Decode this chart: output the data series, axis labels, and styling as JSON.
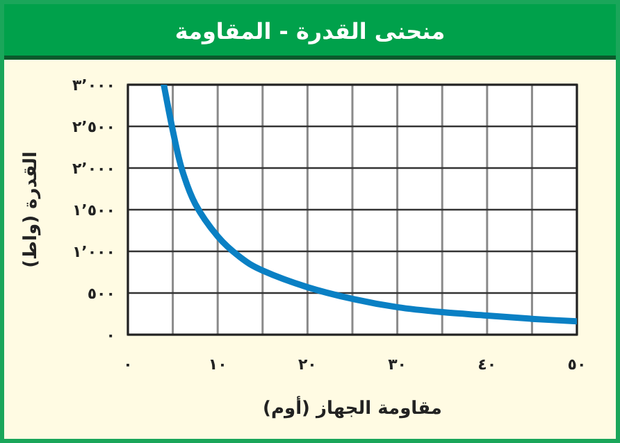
{
  "chart_data": {
    "type": "line",
    "title": "منحنى القدرة - المقاومة",
    "xlabel": "مقاومة الجهاز (أوم)",
    "ylabel": "القدرة (واط)",
    "x": [
      4,
      5,
      6,
      7.5,
      10,
      12.5,
      15,
      20,
      25,
      30,
      35,
      40,
      45,
      50
    ],
    "series": [
      {
        "color": "#0a80c4",
        "values": [
          3000,
          2450,
          1990,
          1570,
          1180,
          930,
          770,
          570,
          430,
          330,
          270,
          230,
          190,
          160
        ]
      }
    ],
    "xlim": [
      0,
      50
    ],
    "ylim": [
      0,
      3000
    ],
    "xticks": [
      {
        "value": 0,
        "label": "٠"
      },
      {
        "value": 5,
        "label": null
      },
      {
        "value": 10,
        "label": "١٠"
      },
      {
        "value": 15,
        "label": null
      },
      {
        "value": 20,
        "label": "٢٠"
      },
      {
        "value": 25,
        "label": null
      },
      {
        "value": 30,
        "label": "٣٠"
      },
      {
        "value": 35,
        "label": null
      },
      {
        "value": 40,
        "label": "٤٠"
      },
      {
        "value": 45,
        "label": null
      },
      {
        "value": 50,
        "label": "٥٠"
      }
    ],
    "yticks": [
      {
        "value": 0,
        "label": "٠"
      },
      {
        "value": 500,
        "label": "٥٠٠"
      },
      {
        "value": 1000,
        "label": "١٬٠٠٠"
      },
      {
        "value": 1500,
        "label": "١٬٥٠٠"
      },
      {
        "value": 2000,
        "label": "٢٬٠٠٠"
      },
      {
        "value": 2500,
        "label": "٢٬٥٠٠"
      },
      {
        "value": 3000,
        "label": "٣٬٠٠٠"
      }
    ],
    "grid": true,
    "marker": "none",
    "line_style": "solid"
  }
}
